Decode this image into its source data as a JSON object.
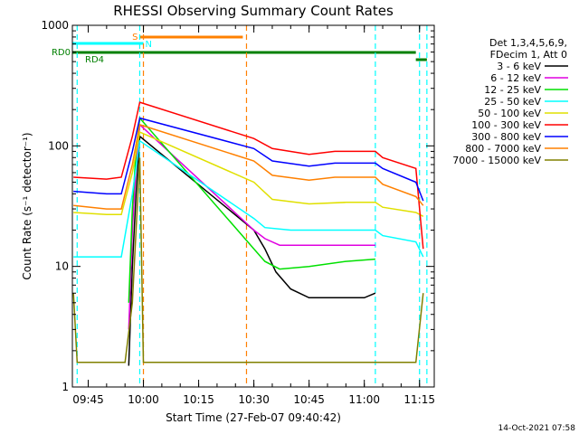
{
  "chart_data": {
    "type": "line",
    "title": "RHESSI Observing Summary Count Rates",
    "xlabel": "Start Time (27-Feb-07 09:40:42)",
    "ylabel": "Count Rate (s⁻¹ detector⁻¹)",
    "yscale": "log",
    "ylim": [
      1,
      1000
    ],
    "y_ticks": [
      "1",
      "10",
      "100",
      "1000"
    ],
    "xlim": [
      "09:40:42",
      "11:19:00"
    ],
    "x_ticks": [
      "09:45",
      "10:00",
      "10:15",
      "10:30",
      "10:45",
      "11:00",
      "11:15"
    ],
    "grid": false,
    "legend_position": "top-right",
    "legend_header": [
      "Det 1,3,4,5,6,9,",
      "FDecim 1, Att 0"
    ],
    "series": [
      {
        "name": "3 - 6 keV",
        "color": "#000000",
        "points": [
          [
            "09:56",
            1.5
          ],
          [
            "09:57",
            10
          ],
          [
            "09:58",
            40
          ],
          [
            "09:59",
            120
          ],
          [
            "10:30",
            20
          ],
          [
            "10:33",
            14
          ],
          [
            "10:36",
            9
          ],
          [
            "10:40",
            6.5
          ],
          [
            "10:45",
            5.5
          ],
          [
            "11:00",
            5.5
          ],
          [
            "11:03",
            6
          ]
        ]
      },
      {
        "name": "6 - 12 keV",
        "color": "#e000e0",
        "points": [
          [
            "09:56",
            3
          ],
          [
            "09:57",
            20
          ],
          [
            "09:58",
            70
          ],
          [
            "09:59",
            150
          ],
          [
            "10:30",
            20
          ],
          [
            "10:33",
            17
          ],
          [
            "10:37",
            15
          ],
          [
            "10:45",
            15
          ],
          [
            "10:55",
            15
          ],
          [
            "11:03",
            15
          ]
        ]
      },
      {
        "name": "12 - 25 keV",
        "color": "#00e000",
        "points": [
          [
            "09:56",
            5
          ],
          [
            "09:57",
            30
          ],
          [
            "09:58",
            90
          ],
          [
            "09:59",
            170
          ],
          [
            "10:30",
            14
          ],
          [
            "10:33",
            11
          ],
          [
            "10:37",
            9.5
          ],
          [
            "10:45",
            10
          ],
          [
            "10:55",
            11
          ],
          [
            "11:03",
            11.5
          ]
        ]
      },
      {
        "name": "25 - 50 keV",
        "color": "#00ffff",
        "points": [
          [
            "09:41",
            12
          ],
          [
            "09:50",
            12
          ],
          [
            "09:54",
            12
          ],
          [
            "09:57",
            40
          ],
          [
            "09:59",
            110
          ],
          [
            "10:30",
            25
          ],
          [
            "10:33",
            21
          ],
          [
            "10:40",
            20
          ],
          [
            "10:50",
            20
          ],
          [
            "11:03",
            20
          ],
          [
            "11:05",
            18
          ],
          [
            "11:14",
            16
          ],
          [
            "11:16",
            12
          ]
        ]
      },
      {
        "name": "50 - 100 keV",
        "color": "#e0e000",
        "points": [
          [
            "09:41",
            28
          ],
          [
            "09:50",
            27
          ],
          [
            "09:54",
            27
          ],
          [
            "09:57",
            60
          ],
          [
            "09:59",
            130
          ],
          [
            "10:30",
            50
          ],
          [
            "10:35",
            36
          ],
          [
            "10:45",
            33
          ],
          [
            "10:55",
            34
          ],
          [
            "11:03",
            34
          ],
          [
            "11:05",
            31
          ],
          [
            "11:14",
            28
          ],
          [
            "11:16",
            26
          ]
        ]
      },
      {
        "name": "100 - 300 keV",
        "color": "#ff0000",
        "points": [
          [
            "09:41",
            55
          ],
          [
            "09:50",
            53
          ],
          [
            "09:54",
            55
          ],
          [
            "09:57",
            120
          ],
          [
            "09:59",
            230
          ],
          [
            "10:30",
            115
          ],
          [
            "10:35",
            95
          ],
          [
            "10:45",
            85
          ],
          [
            "10:52",
            90
          ],
          [
            "11:03",
            90
          ],
          [
            "11:05",
            80
          ],
          [
            "11:14",
            65
          ],
          [
            "11:16",
            14
          ]
        ]
      },
      {
        "name": "300 - 800 keV",
        "color": "#0000ff",
        "points": [
          [
            "09:41",
            42
          ],
          [
            "09:50",
            40
          ],
          [
            "09:54",
            40
          ],
          [
            "09:57",
            90
          ],
          [
            "09:59",
            170
          ],
          [
            "10:30",
            95
          ],
          [
            "10:35",
            75
          ],
          [
            "10:45",
            68
          ],
          [
            "10:52",
            72
          ],
          [
            "11:03",
            72
          ],
          [
            "11:05",
            65
          ],
          [
            "11:14",
            50
          ],
          [
            "11:16",
            35
          ]
        ]
      },
      {
        "name": "800 - 7000 keV",
        "color": "#ff8000",
        "points": [
          [
            "09:41",
            32
          ],
          [
            "09:50",
            30
          ],
          [
            "09:54",
            30
          ],
          [
            "09:57",
            70
          ],
          [
            "09:59",
            150
          ],
          [
            "10:30",
            75
          ],
          [
            "10:35",
            57
          ],
          [
            "10:45",
            52
          ],
          [
            "10:52",
            55
          ],
          [
            "11:03",
            55
          ],
          [
            "11:05",
            48
          ],
          [
            "11:14",
            38
          ],
          [
            "11:16",
            32
          ]
        ]
      },
      {
        "name": "7000 - 15000 keV",
        "color": "#808000",
        "points": [
          [
            "09:41",
            6
          ],
          [
            "09:42",
            1.6
          ],
          [
            "09:55",
            1.6
          ],
          [
            "09:57",
            5
          ],
          [
            "09:59",
            80
          ],
          [
            "10:00",
            1.6
          ],
          [
            "10:28",
            1.6
          ],
          [
            "10:40",
            1.6
          ],
          [
            "11:05",
            1.6
          ],
          [
            "11:14",
            1.6
          ],
          [
            "11:16",
            6
          ]
        ]
      }
    ],
    "flags": [
      {
        "label": "S",
        "color": "#ff8000",
        "start": "09:59",
        "end": "10:27"
      },
      {
        "label": "N",
        "color": "#00ffff",
        "start": "09:40:42",
        "end": "10:00"
      },
      {
        "label": "RD0",
        "color": "#008000",
        "start": "09:40:42",
        "end": "11:14"
      },
      {
        "label": "RD4",
        "color": "#008000",
        "start": "11:14",
        "end": "11:17"
      }
    ],
    "markers": [
      {
        "color": "#00ffff",
        "time": "09:42"
      },
      {
        "color": "#00ffff",
        "time": "09:59"
      },
      {
        "color": "#ff8000",
        "time": "10:00"
      },
      {
        "color": "#ff8000",
        "time": "10:28"
      },
      {
        "color": "#00ffff",
        "time": "11:03"
      },
      {
        "color": "#00ffff",
        "time": "11:15"
      },
      {
        "color": "#00ffff",
        "time": "11:17"
      }
    ]
  },
  "footer_timestamp": "14-Oct-2021 07:58"
}
